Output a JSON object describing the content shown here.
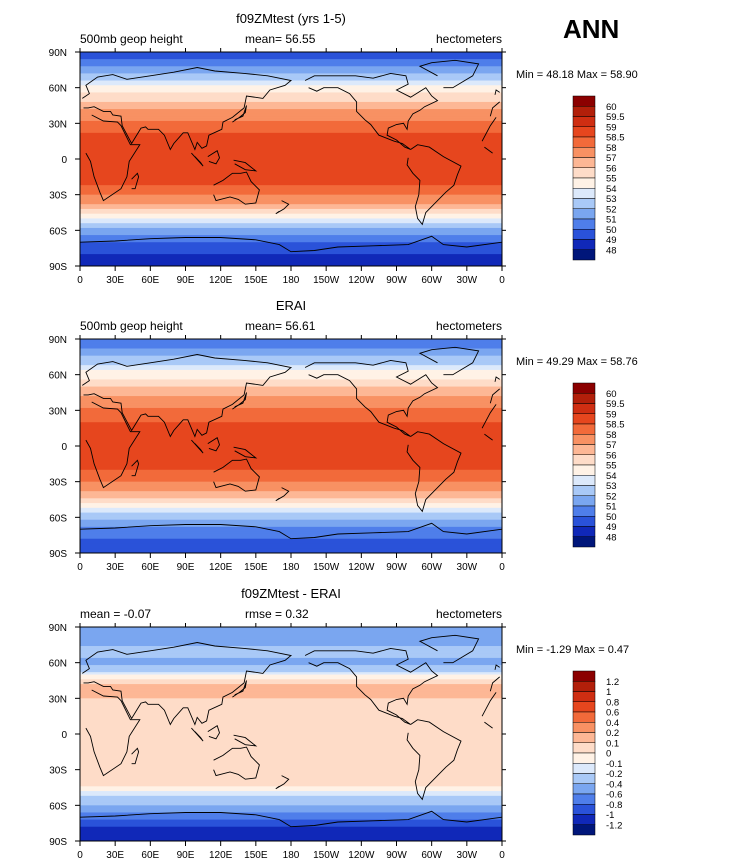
{
  "season": "ANN",
  "chart_data": [
    {
      "type": "heatmap",
      "title": "f09ZMtest (yrs 1-5)",
      "left_label": "500mb geop height",
      "stat1": "mean=   56.55",
      "stat2": "",
      "units": "hectometers",
      "minmax": "Min =  48.18 Max =  58.90",
      "x_ticks": [
        "0",
        "30E",
        "60E",
        "90E",
        "120E",
        "150E",
        "180",
        "150W",
        "120W",
        "90W",
        "60W",
        "30W",
        "0"
      ],
      "y_ticks": [
        "90N",
        "60N",
        "30N",
        "0",
        "30S",
        "60S",
        "90S"
      ],
      "lat_values": [
        90,
        80,
        70,
        60,
        50,
        40,
        30,
        20,
        10,
        0,
        -10,
        -20,
        -30,
        -40,
        -50,
        -60,
        -70,
        -80,
        -90
      ],
      "zonal_values": [
        49.0,
        50.5,
        52.2,
        54.3,
        55.8,
        57.4,
        58.2,
        58.6,
        58.8,
        58.9,
        58.8,
        58.6,
        58.0,
        56.6,
        54.2,
        51.6,
        50.0,
        49.0,
        48.2
      ],
      "colorbar": {
        "labels": [
          "60",
          "59.5",
          "59",
          "58.5",
          "58",
          "57",
          "56",
          "55",
          "54",
          "53",
          "52",
          "51",
          "50",
          "49",
          "48"
        ],
        "colors": [
          "#8b0000",
          "#b21f0a",
          "#cf2e12",
          "#e6461e",
          "#f26a3a",
          "#f89163",
          "#fdb795",
          "#fedcc8",
          "#fff2e6",
          "#dce9fb",
          "#a9c9f7",
          "#7aa6f0",
          "#4f7eea",
          "#2a52d9",
          "#1028b8",
          "#00167a"
        ]
      }
    },
    {
      "type": "heatmap",
      "title": "ERAI",
      "left_label": "500mb geop height",
      "stat1": "mean=   56.61",
      "stat2": "",
      "units": "hectometers",
      "minmax": "Min =  49.29 Max =  58.76",
      "x_ticks": [
        "0",
        "30E",
        "60E",
        "90E",
        "120E",
        "150E",
        "180",
        "150W",
        "120W",
        "90W",
        "60W",
        "30W",
        "0"
      ],
      "y_ticks": [
        "90N",
        "60N",
        "30N",
        "0",
        "30S",
        "60S",
        "90S"
      ],
      "lat_values": [
        90,
        80,
        70,
        60,
        50,
        40,
        30,
        20,
        10,
        0,
        -10,
        -20,
        -30,
        -40,
        -50,
        -60,
        -70,
        -80,
        -90
      ],
      "zonal_values": [
        50.2,
        51.3,
        52.8,
        54.6,
        55.9,
        57.3,
        58.1,
        58.5,
        58.7,
        58.7,
        58.7,
        58.5,
        58.0,
        56.7,
        54.6,
        52.2,
        50.6,
        49.8,
        49.3
      ],
      "colorbar": {
        "labels": [
          "60",
          "59.5",
          "59",
          "58.5",
          "58",
          "57",
          "56",
          "55",
          "54",
          "53",
          "52",
          "51",
          "50",
          "49",
          "48"
        ],
        "colors": [
          "#8b0000",
          "#b21f0a",
          "#cf2e12",
          "#e6461e",
          "#f26a3a",
          "#f89163",
          "#fdb795",
          "#fedcc8",
          "#fff2e6",
          "#dce9fb",
          "#a9c9f7",
          "#7aa6f0",
          "#4f7eea",
          "#2a52d9",
          "#1028b8",
          "#00167a"
        ]
      }
    },
    {
      "type": "heatmap",
      "title": "f09ZMtest - ERAI",
      "left_label": "mean =   -0.07",
      "stat1": "rmse =    0.32",
      "stat2": "",
      "units": "hectometers",
      "minmax": "Min =  -1.29 Max =    0.47",
      "x_ticks": [
        "0",
        "30E",
        "60E",
        "90E",
        "120E",
        "150E",
        "180",
        "150W",
        "120W",
        "90W",
        "60W",
        "30W",
        "0"
      ],
      "y_ticks": [
        "90N",
        "60N",
        "30N",
        "0",
        "30S",
        "60S",
        "90S"
      ],
      "lat_values": [
        90,
        80,
        70,
        60,
        50,
        40,
        30,
        20,
        10,
        0,
        -10,
        -20,
        -30,
        -40,
        -50,
        -60,
        -70,
        -80,
        -90
      ],
      "zonal_values": [
        -0.6,
        -0.5,
        -0.35,
        -0.45,
        -0.1,
        0.15,
        0.1,
        0.05,
        0.05,
        0.05,
        0.05,
        0.05,
        0.08,
        0.1,
        -0.15,
        -0.4,
        -0.7,
        -1.1,
        -1.2
      ],
      "colorbar": {
        "labels": [
          "1.2",
          "1",
          "0.8",
          "0.6",
          "0.4",
          "0.2",
          "0.1",
          "0",
          "-0.1",
          "-0.2",
          "-0.4",
          "-0.6",
          "-0.8",
          "-1",
          "-1.2"
        ],
        "colors": [
          "#8b0000",
          "#b21f0a",
          "#cf2e12",
          "#e6461e",
          "#f26a3a",
          "#f89163",
          "#fdb795",
          "#fedcc8",
          "#fff2e6",
          "#dce9fb",
          "#a9c9f7",
          "#7aa6f0",
          "#4f7eea",
          "#2a52d9",
          "#1028b8",
          "#00167a"
        ]
      }
    }
  ]
}
